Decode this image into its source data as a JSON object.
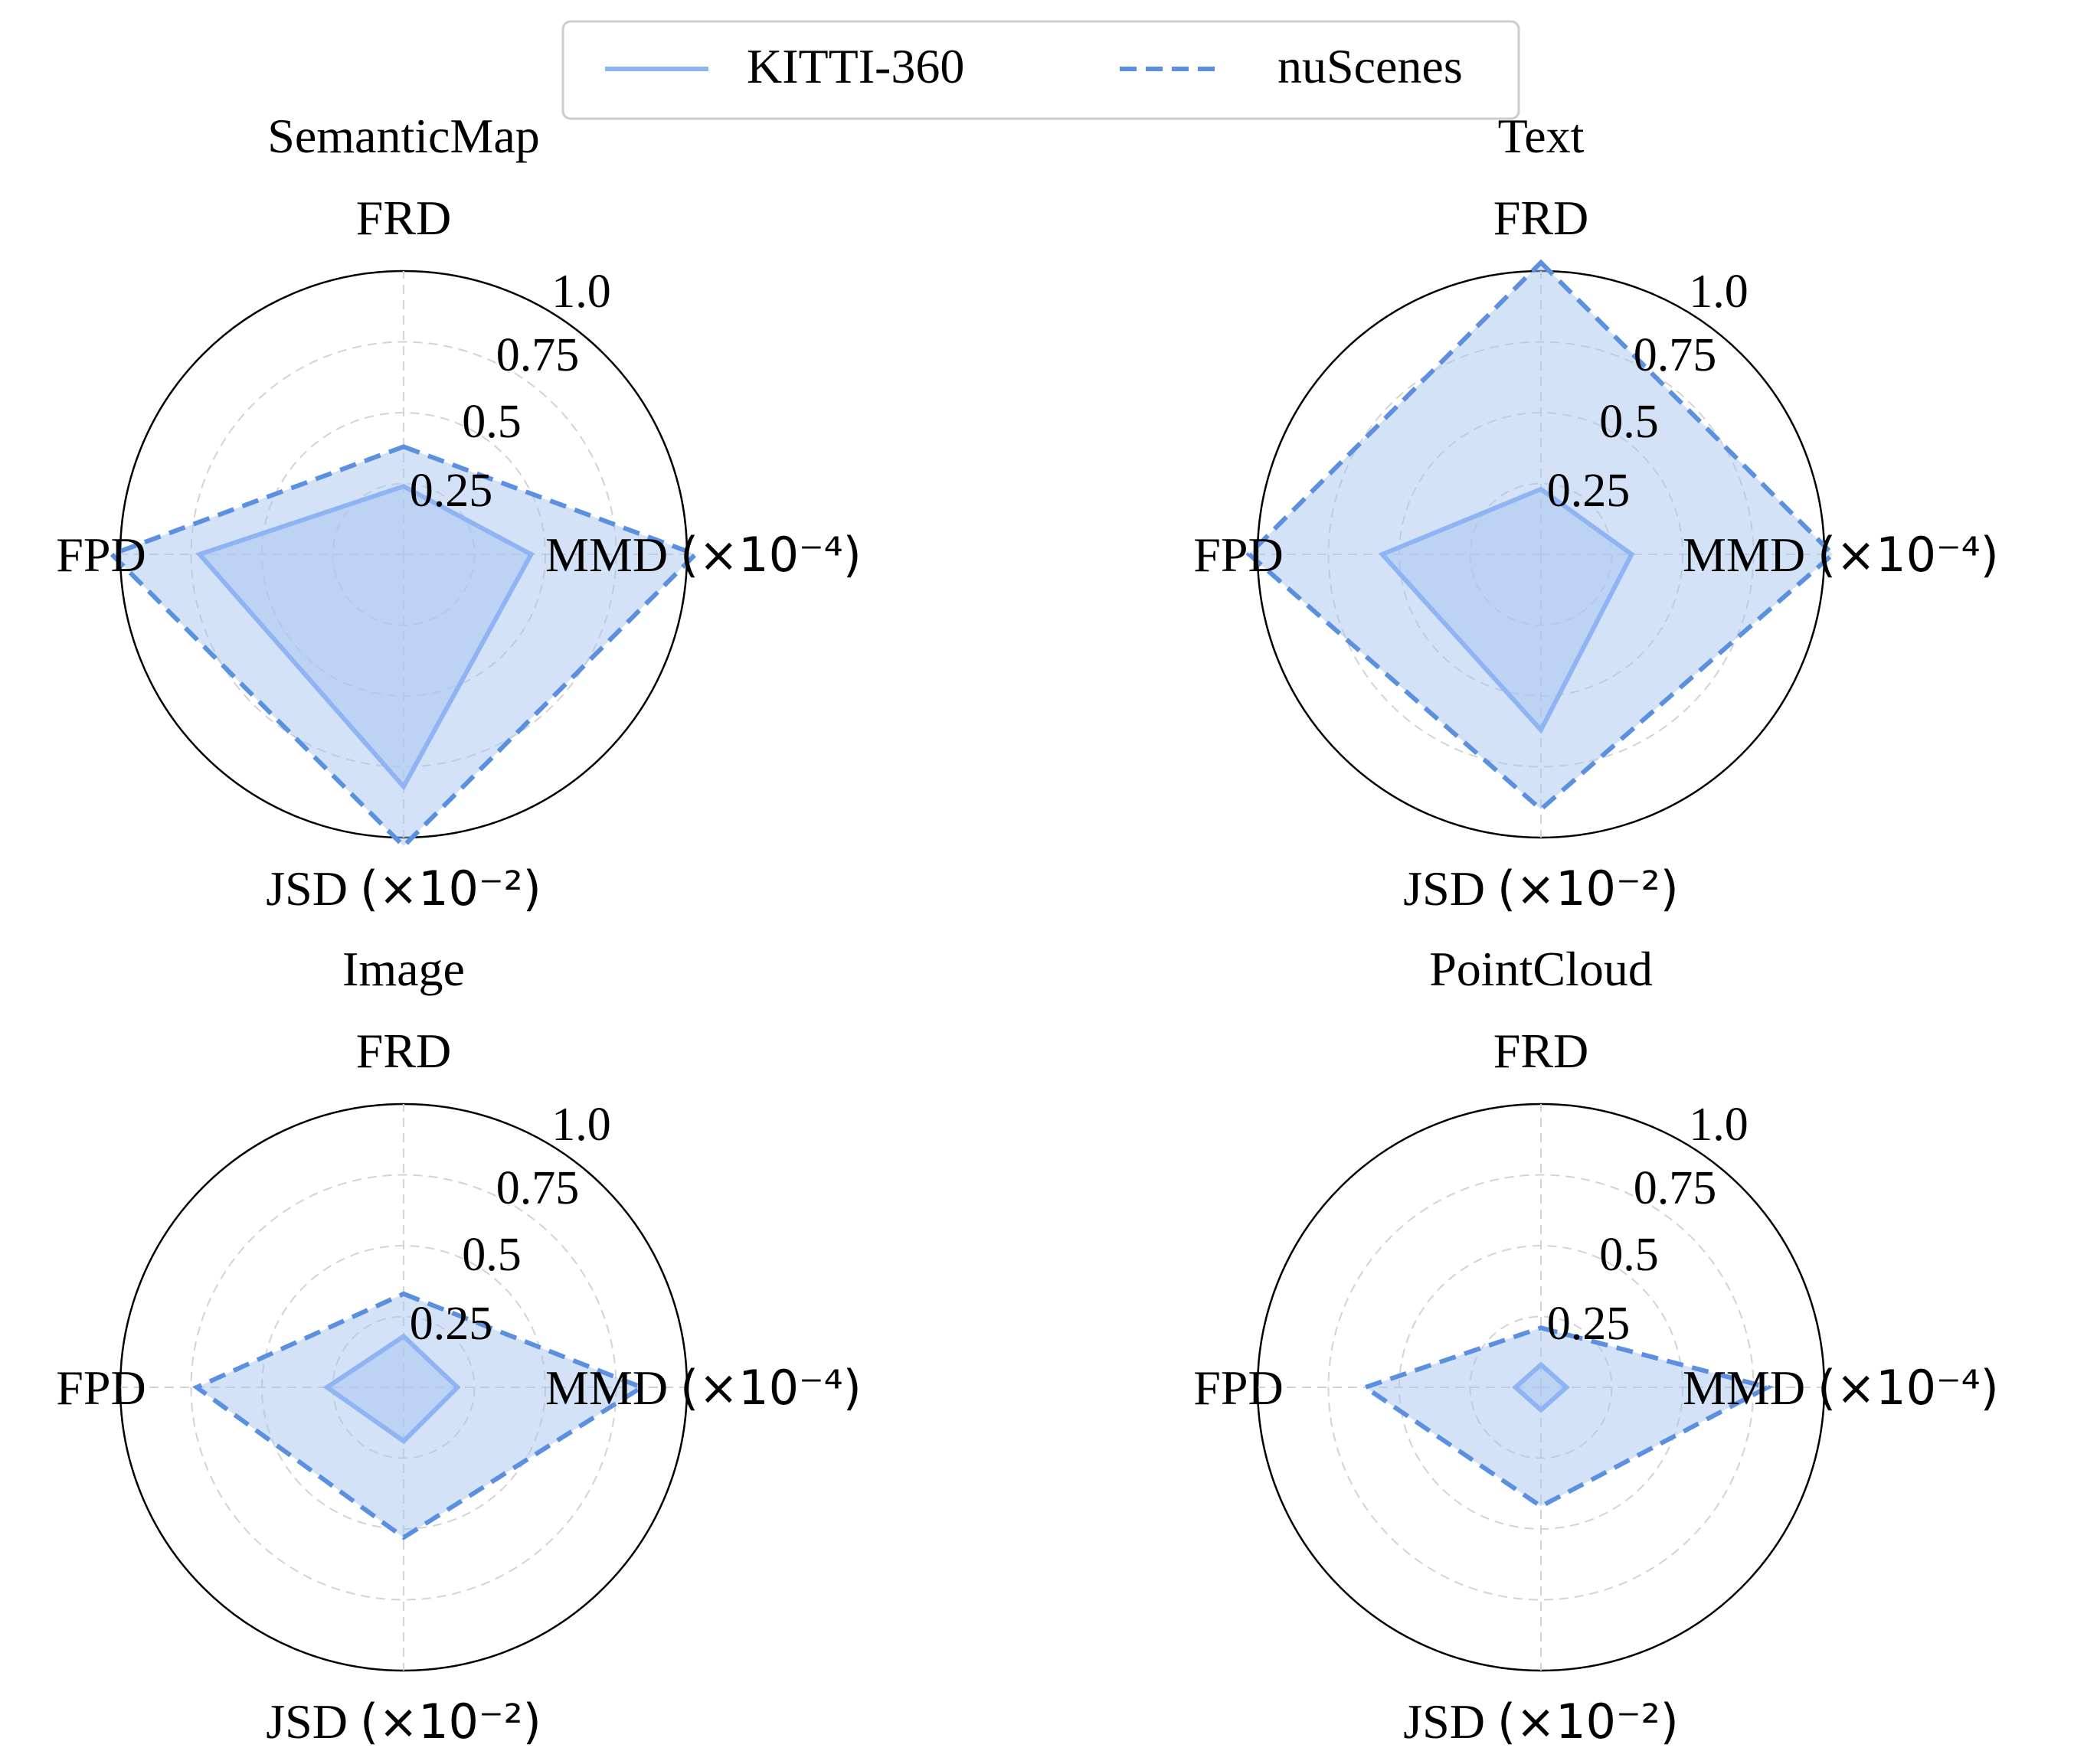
{
  "legend": {
    "entries": [
      {
        "label": "KITTI-360",
        "style": "solid",
        "color": "#8fb4f3"
      },
      {
        "label": "nuScenes",
        "style": "dashed",
        "color": "#5b8fdf"
      }
    ]
  },
  "colors": {
    "kitti_line": "#8fb4f3",
    "nuscenes_line": "#5b8fdf",
    "fill": "#a9c6f1",
    "grid": "#d3d3d3",
    "circle": "#000000"
  },
  "chart_data": [
    {
      "type": "radar",
      "title": "SemanticMap",
      "axes": [
        "FRD",
        "MMD",
        "JSD",
        "FPD"
      ],
      "axis_label_main": [
        "FRD",
        "MMD",
        "JSD",
        "FPD"
      ],
      "axis_label_suffix": [
        "",
        "(×10⁻⁴)",
        "(×10⁻²)",
        ""
      ],
      "ticks": [
        "0.25",
        "0.5",
        "0.75",
        "1.0"
      ],
      "range": [
        0,
        1
      ],
      "series": [
        {
          "name": "KITTI-360",
          "values": [
            0.24,
            0.45,
            0.82,
            0.72
          ]
        },
        {
          "name": "nuScenes",
          "values": [
            0.38,
            1.03,
            1.03,
            1.03
          ]
        }
      ]
    },
    {
      "type": "radar",
      "title": "Text",
      "axes": [
        "FRD",
        "MMD",
        "JSD",
        "FPD"
      ],
      "axis_label_main": [
        "FRD",
        "MMD",
        "JSD",
        "FPD"
      ],
      "axis_label_suffix": [
        "",
        "(×10⁻⁴)",
        "(×10⁻²)",
        ""
      ],
      "ticks": [
        "0.25",
        "0.5",
        "0.75",
        "1.0"
      ],
      "range": [
        0,
        1
      ],
      "series": [
        {
          "name": "KITTI-360",
          "values": [
            0.23,
            0.32,
            0.62,
            0.56
          ]
        },
        {
          "name": "nuScenes",
          "values": [
            1.03,
            1.03,
            0.9,
            1.03
          ]
        }
      ]
    },
    {
      "type": "radar",
      "title": "Image",
      "axes": [
        "FRD",
        "MMD",
        "JSD",
        "FPD"
      ],
      "axis_label_main": [
        "FRD",
        "MMD",
        "JSD",
        "FPD"
      ],
      "axis_label_suffix": [
        "",
        "(×10⁻⁴)",
        "(×10⁻²)",
        ""
      ],
      "ticks": [
        "0.25",
        "0.5",
        "0.75",
        "1.0"
      ],
      "range": [
        0,
        1
      ],
      "series": [
        {
          "name": "KITTI-360",
          "values": [
            0.18,
            0.19,
            0.19,
            0.27
          ]
        },
        {
          "name": "nuScenes",
          "values": [
            0.33,
            0.84,
            0.53,
            0.73
          ]
        }
      ]
    },
    {
      "type": "radar",
      "title": "PointCloud",
      "axes": [
        "FRD",
        "MMD",
        "JSD",
        "FPD"
      ],
      "axis_label_main": [
        "FRD",
        "MMD",
        "JSD",
        "FPD"
      ],
      "axis_label_suffix": [
        "",
        "(×10⁻⁴)",
        "(×10⁻²)",
        ""
      ],
      "ticks": [
        "0.25",
        "0.5",
        "0.75",
        "1.0"
      ],
      "range": [
        0,
        1
      ],
      "series": [
        {
          "name": "KITTI-360",
          "values": [
            0.08,
            0.09,
            0.08,
            0.09
          ]
        },
        {
          "name": "nuScenes",
          "values": [
            0.21,
            0.8,
            0.42,
            0.62
          ]
        }
      ]
    }
  ]
}
